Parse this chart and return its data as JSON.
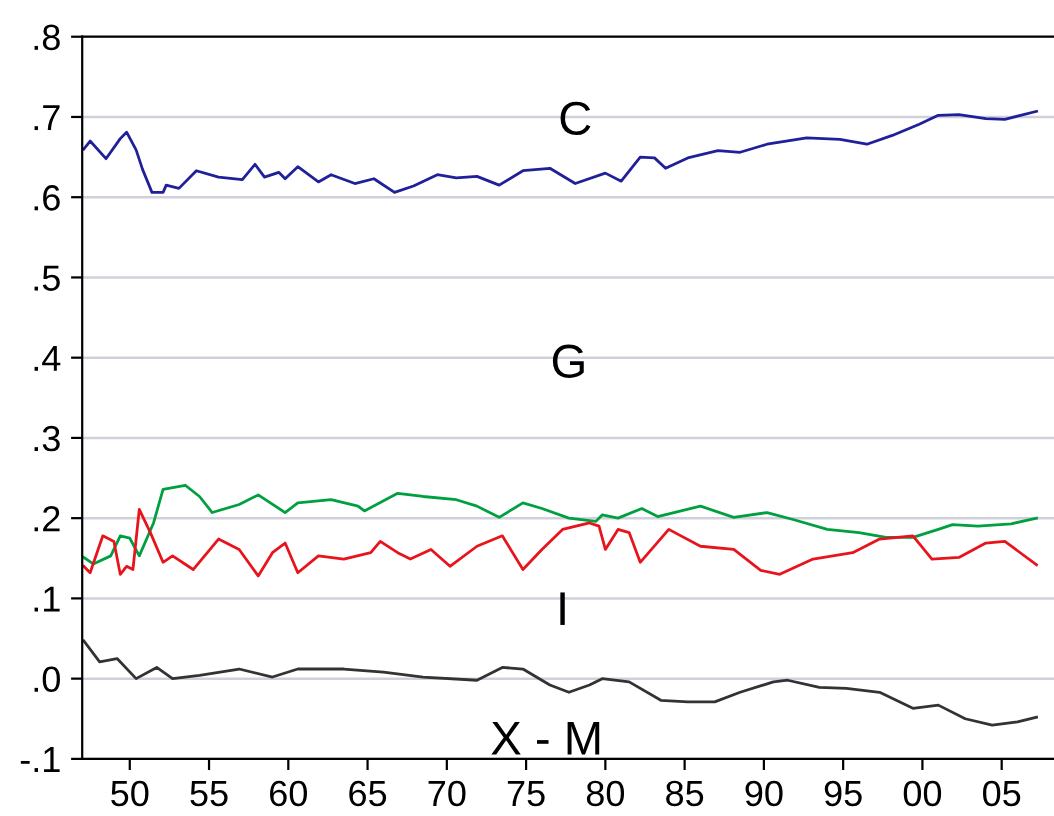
{
  "chart_data": {
    "type": "line",
    "xlim": [
      1947,
      2008.3
    ],
    "ylim": [
      -0.1,
      0.8
    ],
    "xticks": [
      {
        "value": 1950,
        "label": "50"
      },
      {
        "value": 1955,
        "label": "55"
      },
      {
        "value": 1960,
        "label": "60"
      },
      {
        "value": 1965,
        "label": "65"
      },
      {
        "value": 1970,
        "label": "70"
      },
      {
        "value": 1975,
        "label": "75"
      },
      {
        "value": 1980,
        "label": "80"
      },
      {
        "value": 1985,
        "label": "85"
      },
      {
        "value": 1990,
        "label": "90"
      },
      {
        "value": 1995,
        "label": "95"
      },
      {
        "value": 2000,
        "label": "00"
      },
      {
        "value": 2005,
        "label": "05"
      }
    ],
    "yticks": [
      {
        "value": -0.1,
        "label": "-.1"
      },
      {
        "value": 0.0,
        "label": ".0"
      },
      {
        "value": 0.1,
        "label": ".1"
      },
      {
        "value": 0.2,
        "label": ".2"
      },
      {
        "value": 0.3,
        "label": ".3"
      },
      {
        "value": 0.4,
        "label": ".4"
      },
      {
        "value": 0.5,
        "label": ".5"
      },
      {
        "value": 0.6,
        "label": ".6"
      },
      {
        "value": 0.7,
        "label": ".7"
      },
      {
        "value": 0.8,
        "label": ".8"
      }
    ],
    "grid": "y",
    "legend": false,
    "line_style": "solid",
    "marker": "none",
    "series": [
      {
        "name": "C",
        "color": "#20209a",
        "x": [
          1947.1,
          1947.5,
          1948.5,
          1949.4,
          1949.8,
          1950.4,
          1950.8,
          1951.4,
          1952.1,
          1952.3,
          1953.1,
          1954.2,
          1955.6,
          1957.1,
          1957.9,
          1958.5,
          1959.4,
          1959.8,
          1960.6,
          1961.9,
          1962.7,
          1964.2,
          1965.4,
          1966.7,
          1967.9,
          1969.4,
          1970.6,
          1971.9,
          1973.3,
          1974.8,
          1976.5,
          1978.1,
          1980.0,
          1981.0,
          1982.2,
          1983.1,
          1983.8,
          1985.2,
          1987.1,
          1988.5,
          1990.2,
          1992.7,
          1994.8,
          1996.5,
          1998.1,
          1999.8,
          2001.0,
          2002.3,
          2004.0,
          2005.2,
          2007.2
        ],
        "values": [
          0.66,
          0.67,
          0.648,
          0.673,
          0.681,
          0.659,
          0.635,
          0.606,
          0.606,
          0.615,
          0.611,
          0.633,
          0.625,
          0.622,
          0.641,
          0.625,
          0.631,
          0.623,
          0.638,
          0.619,
          0.628,
          0.617,
          0.623,
          0.606,
          0.614,
          0.628,
          0.624,
          0.626,
          0.615,
          0.633,
          0.636,
          0.617,
          0.63,
          0.62,
          0.65,
          0.649,
          0.636,
          0.649,
          0.658,
          0.656,
          0.666,
          0.674,
          0.672,
          0.666,
          0.677,
          0.691,
          0.702,
          0.703,
          0.698,
          0.697,
          0.707
        ]
      },
      {
        "name": "G",
        "color": "#00a040",
        "x": [
          1947.1,
          1947.7,
          1948.8,
          1949.4,
          1950.0,
          1950.6,
          1951.5,
          1952.1,
          1953.5,
          1954.4,
          1955.2,
          1956.9,
          1958.1,
          1959.8,
          1960.6,
          1962.7,
          1964.4,
          1964.8,
          1966.9,
          1968.5,
          1970.6,
          1971.9,
          1973.3,
          1974.8,
          1976.0,
          1977.7,
          1979.4,
          1979.8,
          1980.8,
          1982.3,
          1983.3,
          1986.0,
          1988.1,
          1990.2,
          1991.9,
          1994.0,
          1996.0,
          1997.7,
          1999.4,
          2001.0,
          2001.9,
          2003.5,
          2005.6,
          2007.2
        ],
        "values": [
          0.151,
          0.143,
          0.153,
          0.178,
          0.175,
          0.153,
          0.194,
          0.236,
          0.241,
          0.227,
          0.207,
          0.217,
          0.229,
          0.207,
          0.219,
          0.223,
          0.215,
          0.209,
          0.231,
          0.227,
          0.223,
          0.215,
          0.201,
          0.219,
          0.212,
          0.2,
          0.196,
          0.204,
          0.2,
          0.212,
          0.202,
          0.215,
          0.201,
          0.207,
          0.198,
          0.186,
          0.182,
          0.176,
          0.176,
          0.186,
          0.192,
          0.19,
          0.193,
          0.2
        ]
      },
      {
        "name": "I",
        "color": "#e8141c",
        "x": [
          1947.1,
          1947.5,
          1948.3,
          1949.0,
          1949.4,
          1949.8,
          1950.2,
          1950.6,
          1951.3,
          1952.1,
          1952.7,
          1954.0,
          1955.6,
          1956.9,
          1958.1,
          1959.0,
          1959.8,
          1960.6,
          1961.9,
          1963.5,
          1965.2,
          1965.8,
          1966.9,
          1967.7,
          1969.0,
          1970.2,
          1971.9,
          1973.5,
          1974.8,
          1976.0,
          1977.3,
          1979.0,
          1979.6,
          1980.0,
          1980.8,
          1981.5,
          1982.2,
          1984.0,
          1986.0,
          1988.1,
          1989.8,
          1991.0,
          1993.1,
          1995.6,
          1997.3,
          1999.4,
          2000.6,
          2002.3,
          2004.0,
          2005.2,
          2007.2
        ],
        "values": [
          0.14,
          0.132,
          0.178,
          0.171,
          0.13,
          0.14,
          0.136,
          0.211,
          0.182,
          0.145,
          0.153,
          0.136,
          0.174,
          0.161,
          0.128,
          0.157,
          0.169,
          0.132,
          0.153,
          0.149,
          0.157,
          0.171,
          0.157,
          0.149,
          0.161,
          0.14,
          0.165,
          0.178,
          0.136,
          0.161,
          0.186,
          0.194,
          0.19,
          0.161,
          0.186,
          0.182,
          0.145,
          0.186,
          0.165,
          0.161,
          0.135,
          0.13,
          0.149,
          0.157,
          0.174,
          0.178,
          0.149,
          0.151,
          0.169,
          0.171,
          0.142
        ]
      },
      {
        "name": "X - M",
        "color": "#333333",
        "x": [
          1947.1,
          1948.1,
          1949.2,
          1950.4,
          1951.7,
          1952.7,
          1954.4,
          1956.9,
          1959.0,
          1960.6,
          1963.5,
          1966.0,
          1968.5,
          1971.9,
          1973.5,
          1974.8,
          1976.5,
          1977.7,
          1979.0,
          1979.8,
          1981.5,
          1983.5,
          1985.2,
          1986.9,
          1988.5,
          1990.6,
          1991.5,
          1993.5,
          1995.2,
          1997.3,
          1999.4,
          2001.0,
          2002.7,
          2004.4,
          2006.0,
          2007.2
        ],
        "values": [
          0.047,
          0.021,
          0.025,
          0.0,
          0.014,
          0.0,
          0.004,
          0.012,
          0.002,
          0.012,
          0.012,
          0.008,
          0.002,
          -0.002,
          0.014,
          0.012,
          -0.008,
          -0.017,
          -0.008,
          0.0,
          -0.004,
          -0.027,
          -0.029,
          -0.029,
          -0.017,
          -0.004,
          -0.002,
          -0.011,
          -0.012,
          -0.017,
          -0.037,
          -0.033,
          -0.05,
          -0.058,
          -0.054,
          -0.048
        ]
      }
    ]
  }
}
